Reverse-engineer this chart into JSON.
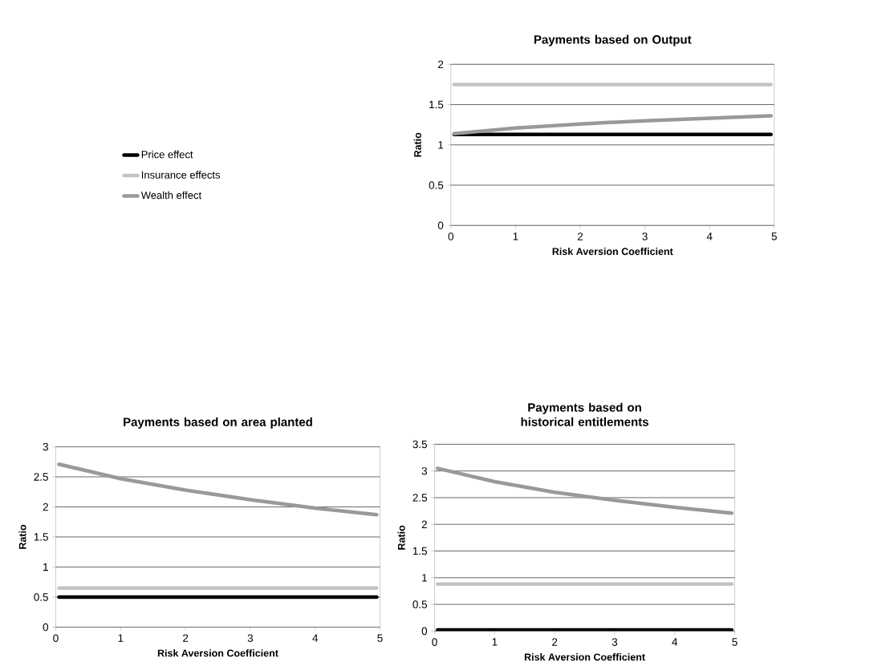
{
  "chart_data": [
    {
      "type": "line",
      "title": "Payments based on Output",
      "xlabel": "Risk Aversion Coefficient",
      "ylabel": "Ratio",
      "x": [
        0.05,
        1,
        2,
        3,
        4,
        4.95
      ],
      "xlim": [
        0,
        5
      ],
      "xticks": [
        0,
        1,
        2,
        3,
        4,
        5
      ],
      "ylim": [
        0,
        2
      ],
      "yticks": [
        0,
        0.5,
        1,
        1.5,
        2
      ],
      "grid": "y",
      "legend": "left",
      "series": [
        {
          "name": "Price effect",
          "color": "#000000",
          "values": [
            1.13,
            1.13,
            1.13,
            1.13,
            1.13,
            1.13
          ]
        },
        {
          "name": "Insurance effects",
          "color": "#c4c4c4",
          "values": [
            1.75,
            1.75,
            1.75,
            1.75,
            1.75,
            1.75
          ]
        },
        {
          "name": "Wealth effect",
          "color": "#999999",
          "values": [
            1.14,
            1.21,
            1.26,
            1.3,
            1.33,
            1.36
          ]
        }
      ]
    },
    {
      "type": "line",
      "title": "Payments based on area planted",
      "xlabel": "Risk Aversion Coefficient",
      "ylabel": "Ratio",
      "x": [
        0.05,
        1,
        2,
        3,
        4,
        4.95
      ],
      "xlim": [
        0,
        5
      ],
      "xticks": [
        0,
        1,
        2,
        3,
        4,
        5
      ],
      "ylim": [
        0,
        3
      ],
      "yticks": [
        0,
        0.5,
        1,
        1.5,
        2,
        2.5,
        3
      ],
      "grid": "y",
      "series": [
        {
          "color": "#000000",
          "values": [
            0.5,
            0.5,
            0.5,
            0.5,
            0.5,
            0.5
          ]
        },
        {
          "color": "#c4c4c4",
          "values": [
            0.65,
            0.65,
            0.65,
            0.65,
            0.65,
            0.65
          ]
        },
        {
          "color": "#999999",
          "values": [
            2.71,
            2.47,
            2.28,
            2.12,
            1.98,
            1.87
          ]
        }
      ]
    },
    {
      "type": "line",
      "title": "Payments based on historical entitlements",
      "xlabel": "Risk Aversion Coefficient",
      "ylabel": "Ratio",
      "x": [
        0.05,
        1,
        2,
        3,
        4,
        4.95
      ],
      "xlim": [
        0,
        5
      ],
      "xticks": [
        0,
        1,
        2,
        3,
        4,
        5
      ],
      "ylim": [
        0,
        3.5
      ],
      "yticks": [
        0,
        0.5,
        1,
        1.5,
        2,
        2.5,
        3,
        3.5
      ],
      "grid": "y",
      "series": [
        {
          "color": "#000000",
          "values": [
            0.02,
            0.02,
            0.02,
            0.02,
            0.02,
            0.02
          ]
        },
        {
          "color": "#c4c4c4",
          "values": [
            0.88,
            0.88,
            0.88,
            0.88,
            0.88,
            0.88
          ]
        },
        {
          "color": "#999999",
          "values": [
            3.05,
            2.8,
            2.6,
            2.45,
            2.32,
            2.21
          ]
        }
      ]
    }
  ]
}
